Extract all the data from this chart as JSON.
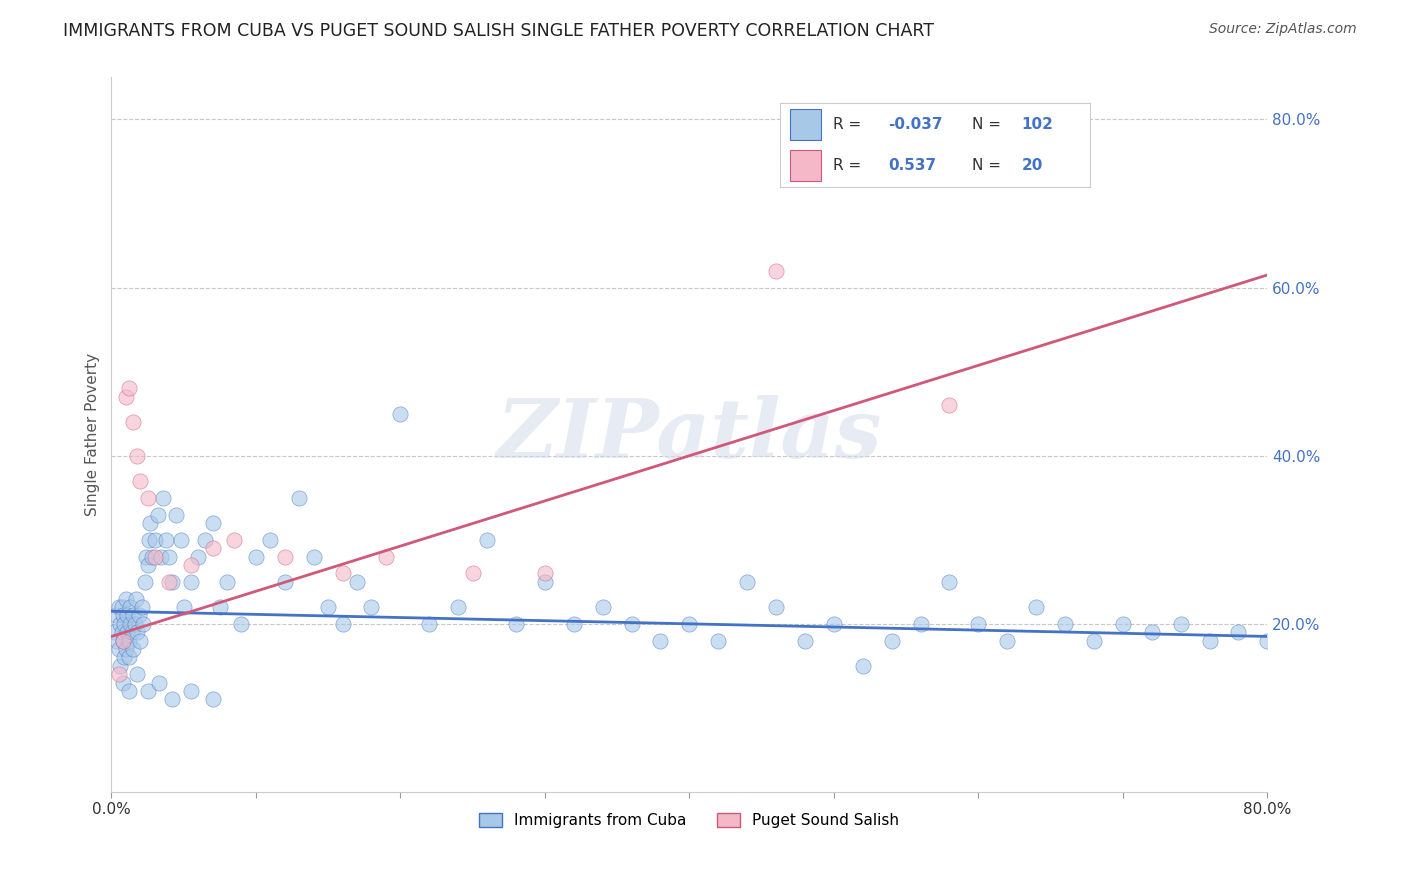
{
  "title": "IMMIGRANTS FROM CUBA VS PUGET SOUND SALISH SINGLE FATHER POVERTY CORRELATION CHART",
  "source": "Source: ZipAtlas.com",
  "ylabel": "Single Father Poverty",
  "blue_label": "Immigrants from Cuba",
  "pink_label": "Puget Sound Salish",
  "blue_R": -0.037,
  "blue_N": 102,
  "pink_R": 0.537,
  "pink_N": 20,
  "xlim": [
    0.0,
    0.8
  ],
  "ylim": [
    0.0,
    0.85
  ],
  "xticks": [
    0.0,
    0.1,
    0.2,
    0.3,
    0.4,
    0.5,
    0.6,
    0.7,
    0.8
  ],
  "ytick_labels": [
    "20.0%",
    "40.0%",
    "60.0%",
    "80.0%"
  ],
  "yticks": [
    0.2,
    0.4,
    0.6,
    0.8
  ],
  "blue_color": "#a8c8e8",
  "pink_color": "#f4b8c8",
  "blue_line_color": "#4472c4",
  "pink_line_color": "#d05878",
  "label_color": "#4472c4",
  "background_color": "#ffffff",
  "grid_color": "#c8c8c8",
  "watermark": "ZIPatlas",
  "blue_x": [
    0.002,
    0.003,
    0.004,
    0.005,
    0.005,
    0.006,
    0.006,
    0.007,
    0.007,
    0.008,
    0.008,
    0.009,
    0.009,
    0.01,
    0.01,
    0.011,
    0.011,
    0.012,
    0.012,
    0.013,
    0.013,
    0.014,
    0.015,
    0.015,
    0.016,
    0.017,
    0.018,
    0.019,
    0.02,
    0.021,
    0.022,
    0.023,
    0.024,
    0.025,
    0.026,
    0.027,
    0.028,
    0.03,
    0.032,
    0.034,
    0.036,
    0.038,
    0.04,
    0.042,
    0.045,
    0.048,
    0.05,
    0.055,
    0.06,
    0.065,
    0.07,
    0.075,
    0.08,
    0.09,
    0.1,
    0.11,
    0.12,
    0.13,
    0.14,
    0.15,
    0.16,
    0.17,
    0.18,
    0.2,
    0.22,
    0.24,
    0.26,
    0.28,
    0.3,
    0.32,
    0.34,
    0.36,
    0.38,
    0.4,
    0.42,
    0.44,
    0.46,
    0.48,
    0.5,
    0.52,
    0.54,
    0.56,
    0.58,
    0.6,
    0.62,
    0.64,
    0.66,
    0.68,
    0.7,
    0.72,
    0.74,
    0.76,
    0.78,
    0.8,
    0.008,
    0.012,
    0.018,
    0.025,
    0.033,
    0.042,
    0.055,
    0.07
  ],
  "blue_y": [
    0.19,
    0.21,
    0.18,
    0.22,
    0.17,
    0.2,
    0.15,
    0.19,
    0.22,
    0.18,
    0.21,
    0.16,
    0.2,
    0.23,
    0.17,
    0.19,
    0.21,
    0.18,
    0.16,
    0.2,
    0.22,
    0.19,
    0.21,
    0.17,
    0.2,
    0.23,
    0.19,
    0.21,
    0.18,
    0.22,
    0.2,
    0.25,
    0.28,
    0.27,
    0.3,
    0.32,
    0.28,
    0.3,
    0.33,
    0.28,
    0.35,
    0.3,
    0.28,
    0.25,
    0.33,
    0.3,
    0.22,
    0.25,
    0.28,
    0.3,
    0.32,
    0.22,
    0.25,
    0.2,
    0.28,
    0.3,
    0.25,
    0.35,
    0.28,
    0.22,
    0.2,
    0.25,
    0.22,
    0.45,
    0.2,
    0.22,
    0.3,
    0.2,
    0.25,
    0.2,
    0.22,
    0.2,
    0.18,
    0.2,
    0.18,
    0.25,
    0.22,
    0.18,
    0.2,
    0.15,
    0.18,
    0.2,
    0.25,
    0.2,
    0.18,
    0.22,
    0.2,
    0.18,
    0.2,
    0.19,
    0.2,
    0.18,
    0.19,
    0.18,
    0.13,
    0.12,
    0.14,
    0.12,
    0.13,
    0.11,
    0.12,
    0.11
  ],
  "pink_x": [
    0.005,
    0.008,
    0.01,
    0.012,
    0.015,
    0.018,
    0.02,
    0.025,
    0.03,
    0.04,
    0.055,
    0.07,
    0.085,
    0.12,
    0.16,
    0.19,
    0.25,
    0.3,
    0.46,
    0.58
  ],
  "pink_y": [
    0.14,
    0.18,
    0.47,
    0.48,
    0.44,
    0.4,
    0.37,
    0.35,
    0.28,
    0.25,
    0.27,
    0.29,
    0.3,
    0.28,
    0.26,
    0.28,
    0.26,
    0.26,
    0.62,
    0.46
  ],
  "blue_trend_x": [
    0.0,
    0.8
  ],
  "blue_trend_y": [
    0.215,
    0.185
  ],
  "pink_trend_x": [
    0.0,
    0.8
  ],
  "pink_trend_y": [
    0.185,
    0.615
  ]
}
